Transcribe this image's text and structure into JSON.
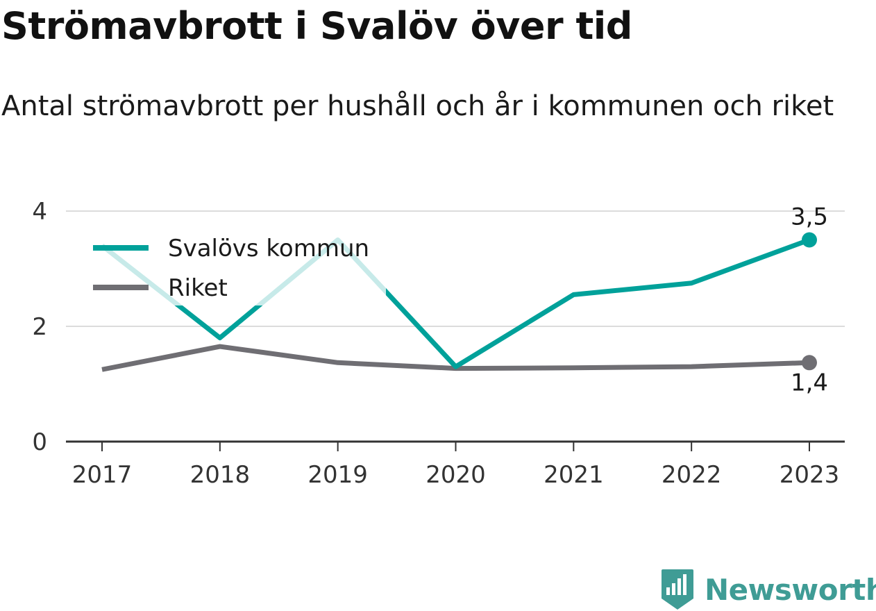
{
  "header": {
    "title": "Strömavbrott i Svalöv över tid",
    "subtitle": "Antal strömavbrott per hushåll och år i kommunen och riket"
  },
  "brand": {
    "name": "Newsworthy",
    "icon": "bar-chart-icon",
    "color": "#3f9c95"
  },
  "chart_data": {
    "type": "line",
    "categories": [
      "2017",
      "2018",
      "2019",
      "2020",
      "2021",
      "2022",
      "2023"
    ],
    "series": [
      {
        "name": "Svalövs kommun",
        "color": "#00a19a",
        "values": [
          3.4,
          1.8,
          3.5,
          1.3,
          2.55,
          2.75,
          3.5
        ]
      },
      {
        "name": "Riket",
        "color": "#6f6e73",
        "values": [
          1.25,
          1.65,
          1.37,
          1.27,
          1.28,
          1.3,
          1.37
        ]
      }
    ],
    "end_labels": [
      "3,5",
      "1,4"
    ],
    "yticks": [
      0,
      2,
      4
    ],
    "ytick_labels": [
      "0",
      "2",
      "4"
    ],
    "ylim": [
      0,
      4
    ],
    "grid": true,
    "legend_position": "top-left",
    "xlabel": "",
    "ylabel": ""
  }
}
